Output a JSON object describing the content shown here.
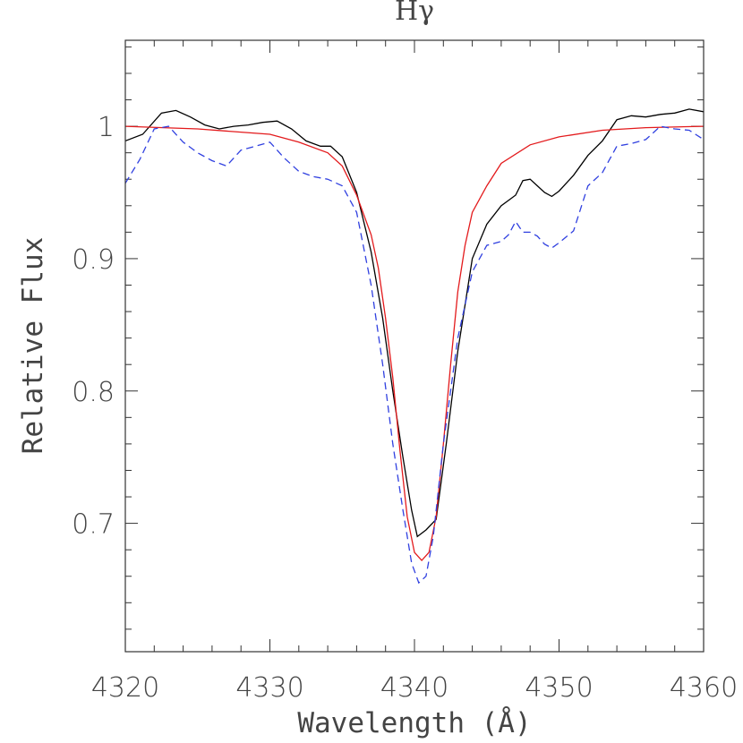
{
  "chart_data": {
    "type": "line",
    "title": "Hγ",
    "xlabel": "Wavelength (Å)",
    "ylabel": "Relative Flux",
    "xlim": [
      4320,
      4360
    ],
    "ylim": [
      0.603,
      1.065
    ],
    "grid": false,
    "legend": "none",
    "x_ticks": [
      4320,
      4330,
      4340,
      4350,
      4360
    ],
    "x_tick_labels": [
      "4320",
      "4330",
      "4340",
      "4350",
      "4360"
    ],
    "y_ticks": [
      0.7,
      0.8,
      0.9,
      1.0
    ],
    "y_tick_labels": [
      "0.7",
      "0.8",
      "0.9",
      "1"
    ],
    "x_minor_step": 2,
    "y_minor_step": 0.02,
    "series": [
      {
        "color": "#000000",
        "dash": "",
        "x": [
          4320,
          4321.2,
          4322.5,
          4323.5,
          4324.5,
          4325.5,
          4326.5,
          4327.5,
          4328.5,
          4329.5,
          4330.5,
          4331.5,
          4332.5,
          4333.5,
          4334.2,
          4335,
          4336,
          4337,
          4337.8,
          4338.5,
          4339.2,
          4339.8,
          4340.2,
          4340.8,
          4341.5,
          4342.2,
          4343,
          4344,
          4345,
          4346,
          4347,
          4347.5,
          4348,
          4348.5,
          4349,
          4349.5,
          4350,
          4351,
          4352,
          4353,
          4354,
          4355,
          4356,
          4357,
          4358,
          4359,
          4360
        ],
        "y": [
          0.989,
          0.994,
          1.01,
          1.012,
          1.007,
          1.001,
          0.998,
          1.0,
          1.001,
          1.003,
          1.004,
          0.998,
          0.989,
          0.985,
          0.985,
          0.977,
          0.95,
          0.905,
          0.855,
          0.8,
          0.75,
          0.71,
          0.69,
          0.695,
          0.703,
          0.76,
          0.83,
          0.9,
          0.926,
          0.94,
          0.948,
          0.959,
          0.96,
          0.955,
          0.95,
          0.947,
          0.951,
          0.963,
          0.978,
          0.989,
          1.005,
          1.008,
          1.007,
          1.009,
          1.01,
          1.013,
          1.011
        ]
      },
      {
        "color": "#e31a1c",
        "dash": "",
        "x": [
          4320,
          4325,
          4330,
          4332,
          4334,
          4335,
          4336,
          4337,
          4337.5,
          4338,
          4338.5,
          4339,
          4339.5,
          4340,
          4340.5,
          4341,
          4341.5,
          4342,
          4342.5,
          4343,
          4343.5,
          4344,
          4345,
          4346,
          4348,
          4350,
          4353,
          4356,
          4360
        ],
        "y": [
          1.0,
          0.998,
          0.994,
          0.988,
          0.98,
          0.97,
          0.948,
          0.918,
          0.893,
          0.855,
          0.81,
          0.755,
          0.705,
          0.678,
          0.672,
          0.678,
          0.705,
          0.76,
          0.82,
          0.875,
          0.91,
          0.935,
          0.955,
          0.972,
          0.986,
          0.992,
          0.997,
          0.999,
          1.0
        ]
      },
      {
        "color": "#3040e0",
        "dash": "8,5",
        "x": [
          4320,
          4321,
          4322,
          4323,
          4324,
          4325,
          4326,
          4327,
          4328,
          4329,
          4330,
          4331,
          4332,
          4333,
          4334,
          4335,
          4336,
          4337,
          4337.8,
          4338.5,
          4339.2,
          4339.8,
          4340.3,
          4340.8,
          4341.3,
          4342,
          4343,
          4344,
          4345,
          4346,
          4346.5,
          4347,
          4347.5,
          4348,
          4348.5,
          4349,
          4349.5,
          4350,
          4351,
          4352,
          4353,
          4354,
          4355,
          4356,
          4357,
          4358,
          4359,
          4360
        ],
        "y": [
          0.957,
          0.975,
          0.998,
          1.0,
          0.988,
          0.98,
          0.974,
          0.97,
          0.982,
          0.985,
          0.988,
          0.976,
          0.966,
          0.962,
          0.96,
          0.955,
          0.935,
          0.88,
          0.82,
          0.76,
          0.71,
          0.67,
          0.655,
          0.66,
          0.69,
          0.76,
          0.84,
          0.89,
          0.91,
          0.913,
          0.918,
          0.928,
          0.92,
          0.92,
          0.917,
          0.911,
          0.908,
          0.912,
          0.921,
          0.955,
          0.965,
          0.985,
          0.987,
          0.99,
          1.0,
          0.998,
          0.997,
          0.99
        ]
      }
    ]
  }
}
